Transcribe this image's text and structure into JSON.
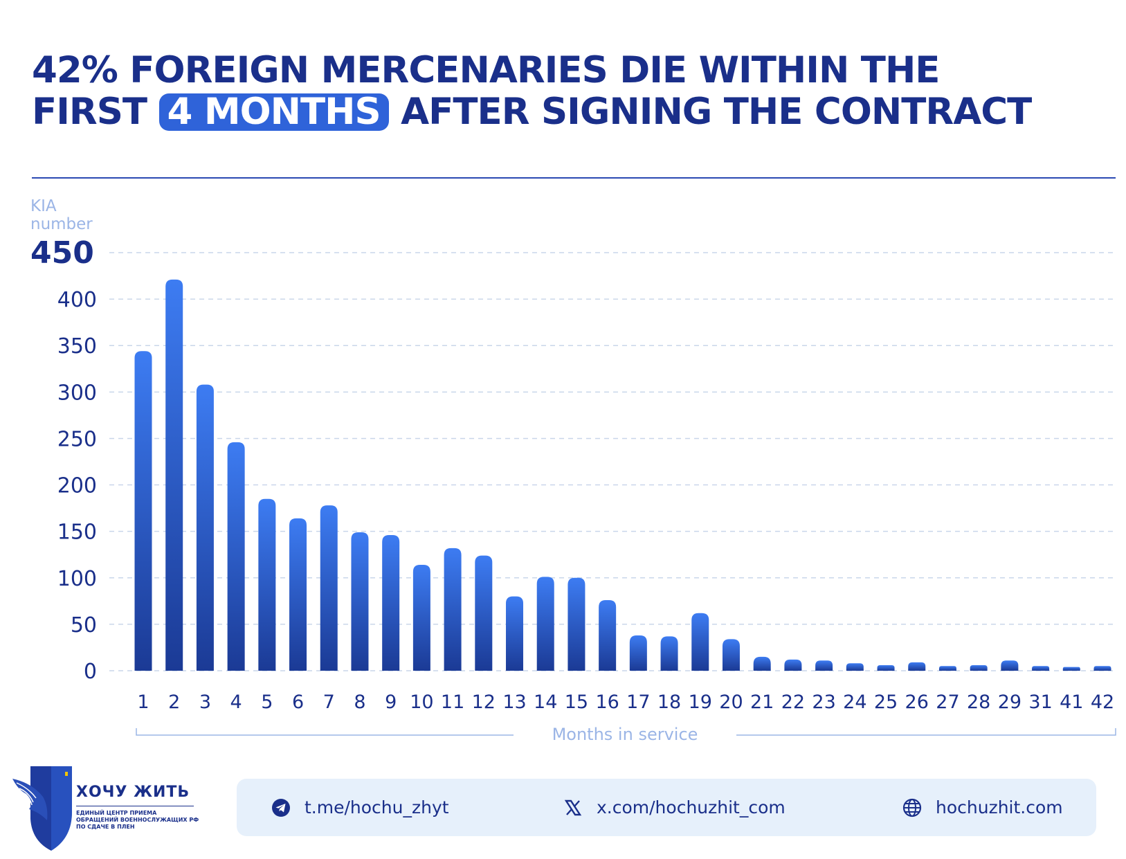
{
  "header": {
    "title_line1": "42% FOREIGN MERCENARIES DIE WITHIN THE",
    "title_line2_pre": "FIRST",
    "title_line2_highlight": "4 MONTHS",
    "title_line2_post": "AFTER SIGNING THE CONTRACT"
  },
  "colors": {
    "title": "#1a2f8a",
    "highlight": "#2f63d9",
    "bar_top": "#3d7cf2",
    "bar_bottom": "#1b3a95",
    "grid": "#c9d6ea",
    "axis_label": "#9bb5e6"
  },
  "chart_data": {
    "type": "bar",
    "ylabel_line1": "KIA",
    "ylabel_line2": "number",
    "xlabel": "Months in service",
    "ylim": [
      0,
      450
    ],
    "yticks": [
      0,
      50,
      100,
      150,
      200,
      250,
      300,
      350,
      400,
      450
    ],
    "top_tick_bold": "450",
    "grid": true,
    "categories": [
      "1",
      "2",
      "3",
      "4",
      "5",
      "6",
      "7",
      "8",
      "9",
      "10",
      "11",
      "12",
      "13",
      "14",
      "15",
      "16",
      "17",
      "18",
      "19",
      "20",
      "21",
      "22",
      "23",
      "24",
      "25",
      "26",
      "27",
      "28",
      "29",
      "31",
      "41",
      "42"
    ],
    "values": [
      344,
      421,
      308,
      246,
      185,
      164,
      178,
      149,
      146,
      114,
      132,
      124,
      80,
      101,
      100,
      76,
      38,
      37,
      62,
      34,
      15,
      12,
      11,
      8,
      6,
      9,
      5,
      6,
      11,
      5,
      4,
      5
    ]
  },
  "footer": {
    "brand_name": "ХОЧУ ЖИТЬ",
    "brand_sub": "ЕДИНЫЙ ЦЕНТР ПРИЕМА ОБРАЩЕНИЙ ВОЕННОСЛУЖАЩИХ РФ ПО СДАЧЕ В ПЛЕН",
    "links": [
      {
        "icon": "telegram-icon",
        "text": "t.me/hochu_zhyt"
      },
      {
        "icon": "x-logo-icon",
        "text": "x.com/hochuzhit_com"
      },
      {
        "icon": "globe-icon",
        "text": "hochuzhit.com"
      }
    ]
  }
}
